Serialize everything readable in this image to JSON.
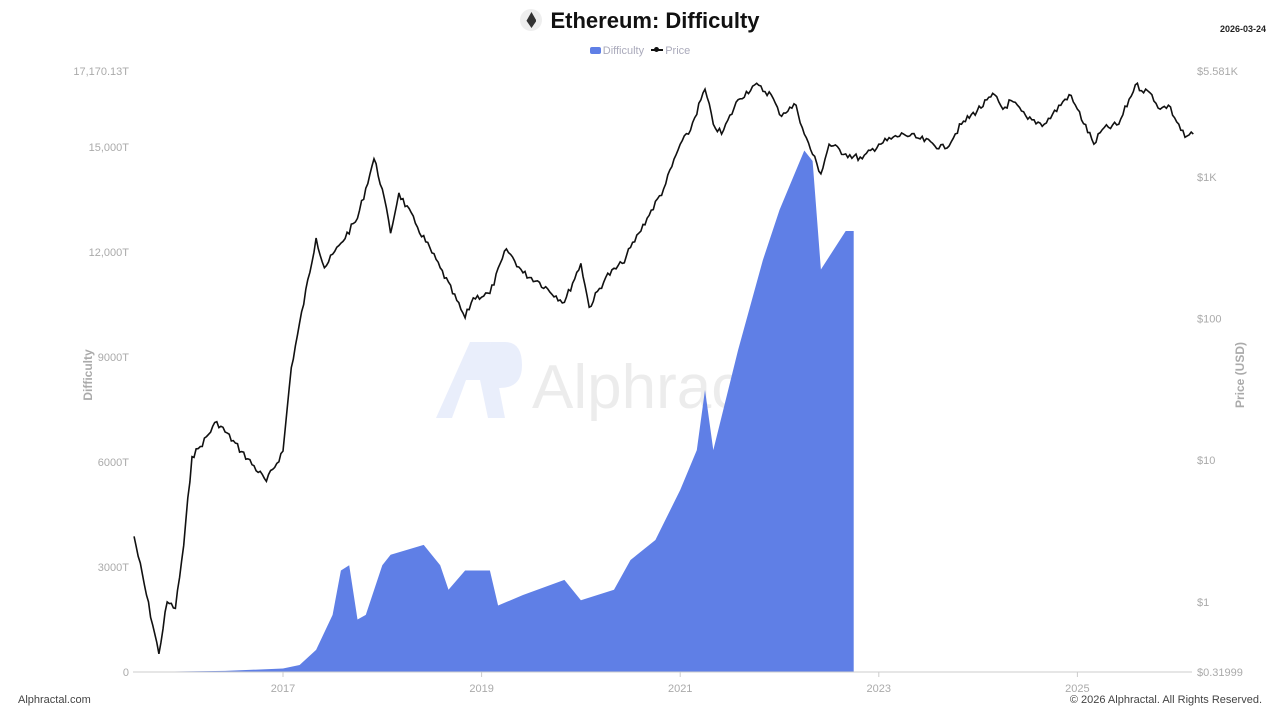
{
  "header": {
    "title": "Ethereum: Difficulty",
    "date": "2026-03-24",
    "icon": "ethereum-icon"
  },
  "legend": {
    "difficulty": "Difficulty",
    "price": "Price"
  },
  "watermark": "Alphractal",
  "footer": {
    "left": "Alphractal.com",
    "right": "© 2026 Alphractal. All Rights Reserved."
  },
  "chart_data": {
    "type": "area+line",
    "title": "Ethereum: Difficulty",
    "ylabel_left": "Difficulty",
    "ylabel_right": "Price (USD)",
    "ylim_left": [
      0,
      17170.13
    ],
    "ylim_right": [
      0.31999,
      5581
    ],
    "right_scale": "log",
    "grid": false,
    "legend_position": "top-center",
    "x_ticks": [
      "2017",
      "2019",
      "2021",
      "2023",
      "2025"
    ],
    "y_left_ticks": [
      "0",
      "3000T",
      "6000T",
      "9000T",
      "12,000T",
      "15,000T",
      "17,170.13T"
    ],
    "y_right_ticks": [
      "$0.31999",
      "$1",
      "$10",
      "$100",
      "$1K",
      "$5.581K"
    ],
    "colors": {
      "difficulty": "#5f7fe6",
      "price": "#111111"
    },
    "series": [
      {
        "name": "Difficulty",
        "unit": "T",
        "type": "area",
        "points": [
          [
            "2015-07",
            0
          ],
          [
            "2016-06",
            30
          ],
          [
            "2017-01",
            100
          ],
          [
            "2017-03",
            200
          ],
          [
            "2017-05",
            630
          ],
          [
            "2017-07",
            1630
          ],
          [
            "2017-08",
            2900
          ],
          [
            "2017-09",
            3050
          ],
          [
            "2017-10",
            1500
          ],
          [
            "2017-11",
            1630
          ],
          [
            "2018-01",
            3050
          ],
          [
            "2018-02",
            3350
          ],
          [
            "2018-06",
            3630
          ],
          [
            "2018-08",
            3050
          ],
          [
            "2018-09",
            2350
          ],
          [
            "2018-11",
            2900
          ],
          [
            "2019-02",
            2900
          ],
          [
            "2019-03",
            1900
          ],
          [
            "2019-06",
            2200
          ],
          [
            "2019-11",
            2630
          ],
          [
            "2020-01",
            2050
          ],
          [
            "2020-05",
            2350
          ],
          [
            "2020-07",
            3200
          ],
          [
            "2020-10",
            3770
          ],
          [
            "2021-01",
            5200
          ],
          [
            "2021-03",
            6340
          ],
          [
            "2021-04",
            8060
          ],
          [
            "2021-05",
            6340
          ],
          [
            "2021-08",
            9200
          ],
          [
            "2021-11",
            11770
          ],
          [
            "2022-01",
            13200
          ],
          [
            "2022-04",
            14900
          ],
          [
            "2022-05",
            14600
          ],
          [
            "2022-06",
            11500
          ],
          [
            "2022-09",
            12600
          ]
        ]
      },
      {
        "name": "Price",
        "unit": "USD",
        "type": "line",
        "points": [
          [
            "2015-07",
            2.9
          ],
          [
            "2015-10",
            0.43
          ],
          [
            "2015-11",
            1.0
          ],
          [
            "2015-12",
            0.9
          ],
          [
            "2016-01",
            2.5
          ],
          [
            "2016-02",
            10.6
          ],
          [
            "2016-03",
            12.5
          ],
          [
            "2016-05",
            18.7
          ],
          [
            "2016-08",
            11.5
          ],
          [
            "2016-11",
            7.1
          ],
          [
            "2017-01",
            11.6
          ],
          [
            "2017-02",
            45
          ],
          [
            "2017-05",
            370
          ],
          [
            "2017-06",
            228
          ],
          [
            "2017-08",
            340
          ],
          [
            "2017-10",
            510
          ],
          [
            "2017-12",
            1340
          ],
          [
            "2018-01",
            820
          ],
          [
            "2018-02",
            400
          ],
          [
            "2018-03",
            770
          ],
          [
            "2018-05",
            470
          ],
          [
            "2018-08",
            228
          ],
          [
            "2018-11",
            101
          ],
          [
            "2018-12",
            140
          ],
          [
            "2019-02",
            150
          ],
          [
            "2019-04",
            310
          ],
          [
            "2019-06",
            210
          ],
          [
            "2019-08",
            180
          ],
          [
            "2019-11",
            130
          ],
          [
            "2020-01",
            245
          ],
          [
            "2020-02",
            120
          ],
          [
            "2020-04",
            195
          ],
          [
            "2020-06",
            245
          ],
          [
            "2020-08",
            400
          ],
          [
            "2020-09",
            510
          ],
          [
            "2020-11",
            820
          ],
          [
            "2021-01",
            1700
          ],
          [
            "2021-02",
            2000
          ],
          [
            "2021-04",
            4150
          ],
          [
            "2021-05",
            2350
          ],
          [
            "2021-06",
            2000
          ],
          [
            "2021-08",
            3500
          ],
          [
            "2021-10",
            4450
          ],
          [
            "2021-12",
            3800
          ],
          [
            "2022-01",
            2750
          ],
          [
            "2022-03",
            3200
          ],
          [
            "2022-04",
            2000
          ],
          [
            "2022-06",
            1050
          ],
          [
            "2022-07",
            1700
          ],
          [
            "2022-09",
            1450
          ],
          [
            "2022-11",
            1340
          ],
          [
            "2023-01",
            1700
          ],
          [
            "2023-04",
            2000
          ],
          [
            "2023-06",
            1850
          ],
          [
            "2023-09",
            1580
          ],
          [
            "2023-11",
            2350
          ],
          [
            "2024-03",
            3800
          ],
          [
            "2024-04",
            3000
          ],
          [
            "2024-05",
            3450
          ],
          [
            "2024-07",
            2550
          ],
          [
            "2024-09",
            2350
          ],
          [
            "2024-12",
            3800
          ],
          [
            "2025-01",
            3000
          ],
          [
            "2025-03",
            1700
          ],
          [
            "2025-04",
            2150
          ],
          [
            "2025-06",
            2350
          ],
          [
            "2025-08",
            4450
          ],
          [
            "2025-10",
            3800
          ],
          [
            "2025-11",
            3000
          ],
          [
            "2025-12",
            3200
          ],
          [
            "2026-02",
            1900
          ],
          [
            "2026-03",
            2000
          ]
        ]
      }
    ]
  }
}
